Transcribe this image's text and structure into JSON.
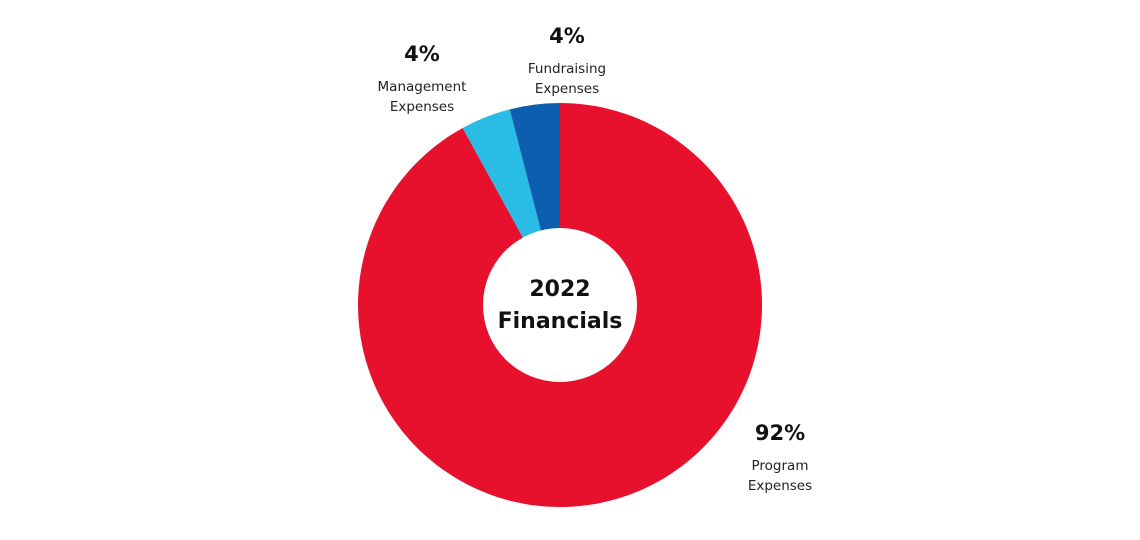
{
  "chart_data": {
    "type": "pie",
    "center_label_lines": [
      "2022",
      "Financials"
    ],
    "slices": [
      {
        "name": "Program Expenses",
        "label_lines": [
          "Program",
          "Expenses"
        ],
        "value": 92,
        "value_label": "92%",
        "color": "#E8112D"
      },
      {
        "name": "Management Expenses",
        "label_lines": [
          "Management",
          "Expenses"
        ],
        "value": 4,
        "value_label": "4%",
        "color": "#29BDE6"
      },
      {
        "name": "Fundraising Expenses",
        "label_lines": [
          "Fundraising",
          "Expenses"
        ],
        "value": 4,
        "value_label": "4%",
        "color": "#0E5EAF"
      }
    ]
  }
}
